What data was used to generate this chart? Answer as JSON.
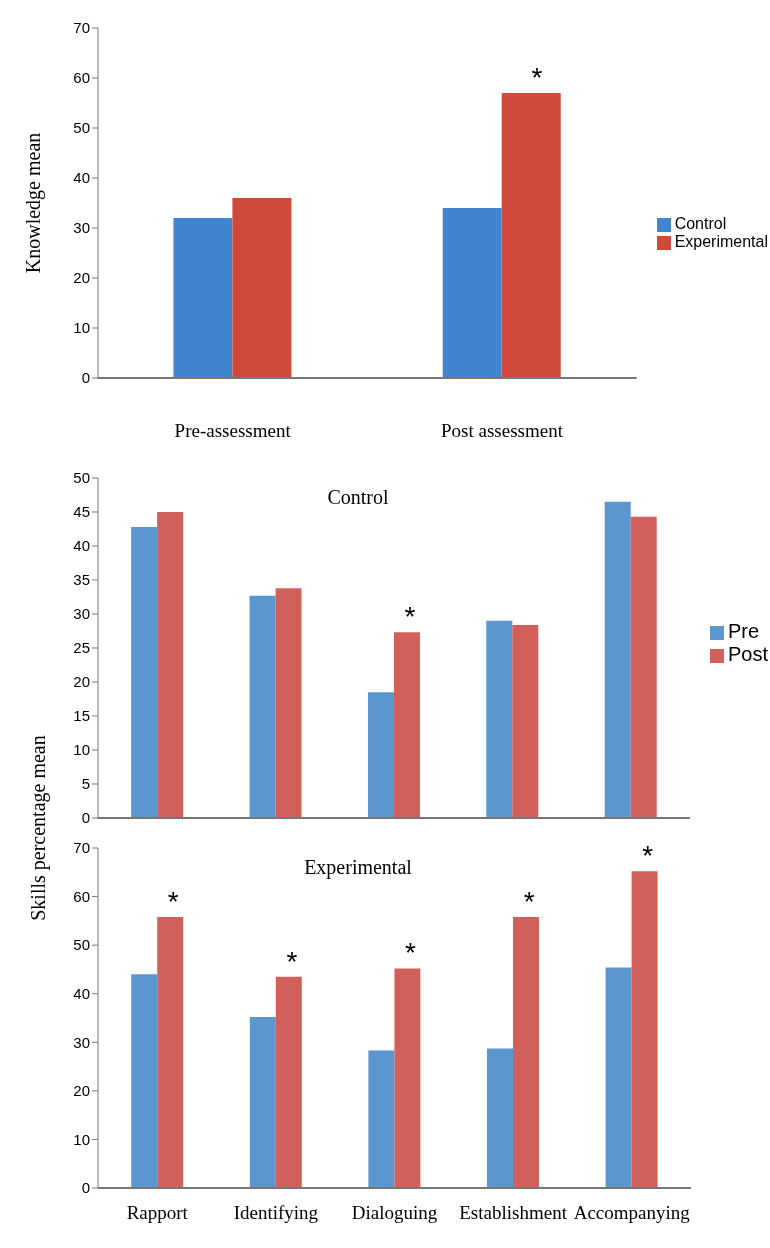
{
  "chart_data": [
    {
      "type": "bar",
      "ylabel": "Knowledge mean",
      "categories": [
        "Pre-assessment",
        "Post assessment"
      ],
      "series": [
        {
          "name": "Control",
          "color": "#3f86cf",
          "values": [
            32,
            34
          ]
        },
        {
          "name": "Experimental",
          "color": "#d0493a",
          "values": [
            36,
            57
          ]
        }
      ],
      "ylim": [
        0,
        70
      ],
      "yticks": [
        0,
        10,
        20,
        30,
        40,
        50,
        60,
        70
      ],
      "grid": false,
      "legend": "right",
      "annotations": [
        {
          "text": "*",
          "x": "Post assessment",
          "y": 57
        }
      ]
    },
    {
      "type": "bar",
      "title": "Control",
      "ylabel": "Skills percentage mean",
      "categories": [
        "Rapport",
        "Identifying",
        "Dialoguing",
        "Establishment",
        "Accompanying"
      ],
      "series": [
        {
          "name": "Pre",
          "color": "#5b96cf",
          "values": [
            42.8,
            32.7,
            18.5,
            29,
            46.5
          ]
        },
        {
          "name": "Post",
          "color": "#d2605a",
          "values": [
            45,
            33.8,
            27.3,
            28.4,
            44.3
          ]
        }
      ],
      "ylim": [
        0,
        50
      ],
      "yticks": [
        0,
        5,
        10,
        15,
        20,
        25,
        30,
        35,
        40,
        45,
        50
      ],
      "grid": false,
      "legend": "right",
      "tick_labels": "y",
      "annotations": [
        {
          "text": "*",
          "x": "Dialoguing",
          "y": 27.3
        }
      ]
    },
    {
      "type": "bar",
      "title": "Experimental",
      "categories": [
        "Rapport",
        "Identifying",
        "Dialoguing",
        "Establishment",
        "Accompanying"
      ],
      "series": [
        {
          "color": "#5b96cf",
          "values": [
            44,
            35.2,
            28.3,
            28.7,
            45.4
          ]
        },
        {
          "color": "#d2605a",
          "values": [
            55.8,
            43.5,
            45.2,
            55.8,
            65.2
          ]
        }
      ],
      "ylim": [
        0,
        70
      ],
      "yticks": [
        0,
        10,
        20,
        30,
        40,
        50,
        60,
        70
      ],
      "grid": false,
      "annotations": [
        {
          "text": "*",
          "x": "Rapport",
          "y": 55.8
        },
        {
          "text": "*",
          "x": "Identifying",
          "y": 43.5
        },
        {
          "text": "*",
          "x": "Dialoguing",
          "y": 45.2
        },
        {
          "text": "*",
          "x": "Establishment",
          "y": 55.8
        },
        {
          "text": "*",
          "x": "Accompanying",
          "y": 65.2
        }
      ]
    }
  ]
}
